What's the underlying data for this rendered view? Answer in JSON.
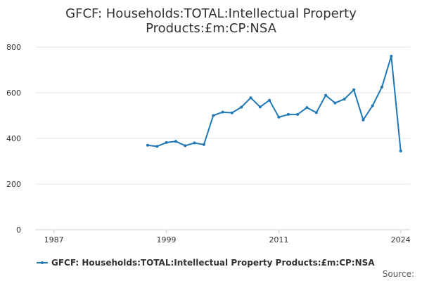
{
  "chart_data": {
    "type": "line",
    "title_lines": [
      "GFCF: Households:TOTAL:Intellectual Property",
      "Products:£m:CP:NSA"
    ],
    "xlabel": "",
    "ylabel": "",
    "xlim": [
      1985,
      2025
    ],
    "ylim": [
      0,
      800
    ],
    "x_ticks": [
      1987,
      1999,
      2011,
      2024
    ],
    "y_ticks": [
      0,
      200,
      400,
      600,
      800
    ],
    "grid": {
      "horizontal": true,
      "vertical": false
    },
    "legend_position": "bottom",
    "series": [
      {
        "name": "GFCF: Households:TOTAL:Intellectual Property Products:£m:CP:NSA",
        "color": "#1f77b4",
        "x": [
          1997,
          1998,
          1999,
          2000,
          2001,
          2002,
          2003,
          2004,
          2005,
          2006,
          2007,
          2008,
          2009,
          2010,
          2011,
          2012,
          2013,
          2014,
          2015,
          2016,
          2017,
          2018,
          2019,
          2020,
          2021,
          2022,
          2023,
          2024
        ],
        "values": [
          370,
          365,
          382,
          387,
          368,
          380,
          373,
          500,
          515,
          512,
          537,
          578,
          538,
          567,
          493,
          505,
          505,
          535,
          513,
          589,
          555,
          572,
          613,
          481,
          543,
          625,
          760,
          345
        ]
      }
    ]
  },
  "source_label": "Source:"
}
